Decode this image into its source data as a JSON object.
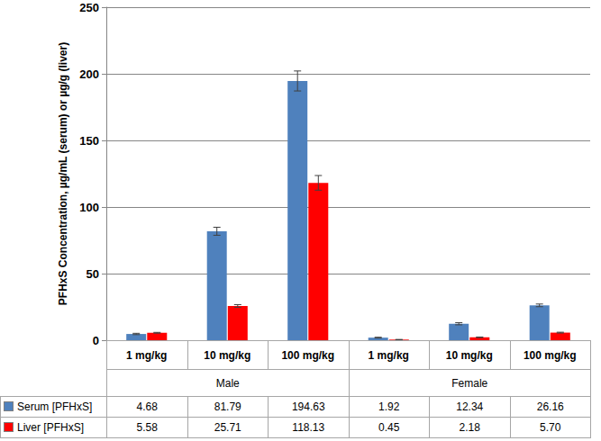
{
  "chart_data": {
    "type": "bar",
    "y_label": "PFHxS Concentration, µg/mL (serum) or µg/g (liver)",
    "categories": [
      "1 mg/kg",
      "10 mg/kg",
      "100 mg/kg",
      "1 mg/kg",
      "10 mg/kg",
      "100 mg/kg"
    ],
    "groups": [
      "Male",
      "Female"
    ],
    "series": [
      {
        "name": "Serum [PFHxS]",
        "color": "#4f81bd",
        "values": [
          4.68,
          81.79,
          194.63,
          1.92,
          12.34,
          26.16
        ],
        "value_labels": [
          "4.68",
          "81.79",
          "194.63",
          "1.92",
          "12.34",
          "26.16"
        ],
        "errors": [
          0.5,
          3,
          7.5,
          0.3,
          0.8,
          1
        ]
      },
      {
        "name": "Liver [PFHxS]",
        "color": "#ff0000",
        "values": [
          5.58,
          25.71,
          118.13,
          0.45,
          2.18,
          5.7
        ],
        "value_labels": [
          "5.58",
          "25.71",
          "118.13",
          "0.45",
          "2.18",
          "5.70"
        ],
        "errors": [
          0.3,
          1,
          5.5,
          0.1,
          0.2,
          0.3
        ]
      }
    ],
    "ylim": [
      0,
      250
    ],
    "yticks": [
      0,
      50,
      100,
      150,
      200,
      250
    ],
    "grid": true
  }
}
